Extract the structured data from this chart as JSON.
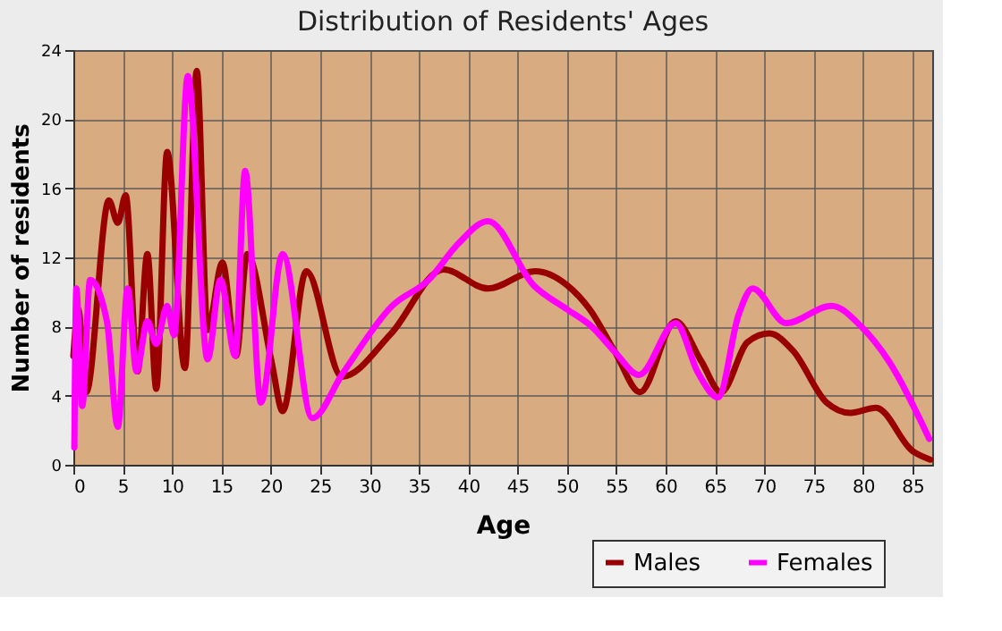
{
  "chart_data": {
    "type": "line",
    "title": "Distribution of Residents' Ages",
    "xlabel": "Age",
    "ylabel": "Number of residents",
    "xlim": [
      0,
      87
    ],
    "xticks": [
      0,
      5,
      10,
      15,
      20,
      25,
      30,
      35,
      40,
      45,
      50,
      55,
      60,
      65,
      70,
      75,
      80,
      85
    ],
    "ylim": [
      0,
      24
    ],
    "yticks": [
      0,
      4,
      8,
      12,
      16,
      20,
      24
    ],
    "grid": true,
    "legend": "bottom right",
    "line_style": "solid",
    "marker": "none",
    "series": [
      {
        "name": "Males",
        "color": "#990000",
        "x": [
          0,
          0.5,
          1.3,
          3.6,
          4.5,
          5.3,
          6.5,
          7.5,
          8.4,
          9.5,
          11.3,
          12.5,
          13.6,
          15.1,
          16.5,
          17.6,
          20.1,
          21.2,
          23.6,
          27.2,
          32.2,
          37.5,
          42,
          46.8,
          50,
          52.3,
          54.9,
          57.4,
          61,
          63.6,
          65.6,
          68.3,
          70.5,
          72.9,
          76.3,
          78.7,
          81.3,
          85,
          86.8
        ],
        "values": [
          6.3,
          9,
          4.2,
          15.3,
          14,
          15.6,
          5.4,
          12.2,
          4.4,
          18.1,
          5.6,
          22.8,
          7.8,
          11.7,
          6.3,
          12.2,
          5.9,
          3.1,
          11.2,
          5.1,
          7.6,
          11.3,
          10.2,
          11.2,
          10.4,
          9,
          6.5,
          4.2,
          8.3,
          6,
          4.2,
          7.1,
          7.6,
          6.6,
          3.6,
          3,
          3.3,
          0.8,
          0.3
        ]
      },
      {
        "name": "Females",
        "color": "#ff00ff",
        "x": [
          0.1,
          0.3,
          0.9,
          1.7,
          3.4,
          4.5,
          5.5,
          6.4,
          7.5,
          8.4,
          9.5,
          10.2,
          11.6,
          13.6,
          14.9,
          16.4,
          17.4,
          19,
          21.2,
          24.2,
          27.3,
          32.3,
          36,
          39,
          42,
          46.6,
          50,
          52.5,
          54.9,
          57.3,
          61,
          63.3,
          65.3,
          67.4,
          68.8,
          72.2,
          76.8,
          79.8,
          82.6,
          86.7
        ],
        "values": [
          1,
          10.2,
          3.4,
          10.7,
          8.3,
          2.2,
          10.2,
          5.4,
          8.3,
          7,
          9.2,
          7.5,
          22.5,
          6.1,
          10.7,
          6.3,
          17,
          3.6,
          12.2,
          2.7,
          5.3,
          9.2,
          10.7,
          12.8,
          14.1,
          10.4,
          9,
          8,
          6.5,
          5.2,
          8.2,
          5.3,
          3.9,
          8.7,
          10.2,
          8.2,
          9.2,
          8,
          6,
          1.5
        ]
      }
    ]
  }
}
